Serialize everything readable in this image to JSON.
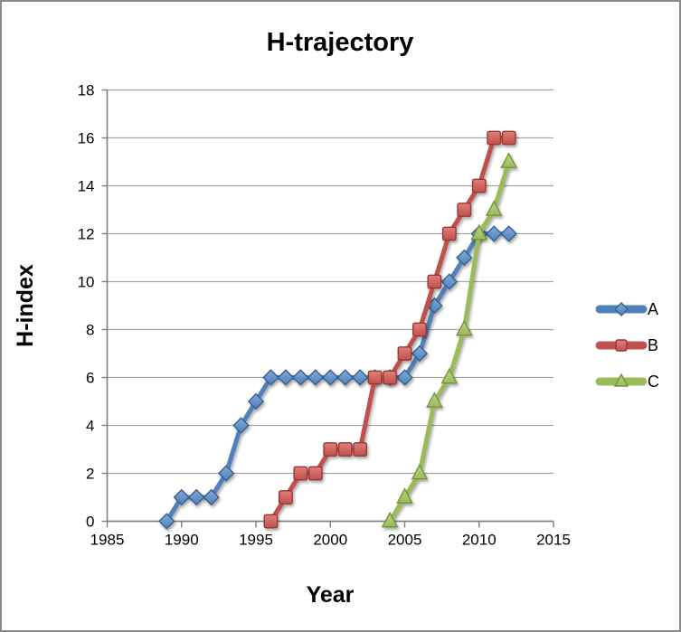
{
  "frame": {
    "background": "#ffffff",
    "border_color": "#8a8a8a"
  },
  "chart_data": {
    "type": "line",
    "title": "H-trajectory",
    "xlabel": "Year",
    "ylabel": "H-index",
    "xlim": [
      1985,
      2015
    ],
    "ylim": [
      0,
      18
    ],
    "x_ticks": [
      1985,
      1990,
      1995,
      2000,
      2005,
      2010,
      2015
    ],
    "y_ticks": [
      0,
      2,
      4,
      6,
      8,
      10,
      12,
      14,
      16,
      18
    ],
    "grid": "horizontal",
    "gridline_color": "#a6a6a6",
    "axis_color": "#808080",
    "legend_position": "right",
    "series": [
      {
        "name": "A",
        "marker": "diamond",
        "color": "#4f81bd",
        "color_light": "#82aad4",
        "edge": "#36618f",
        "x": [
          1989,
          1990,
          1991,
          1992,
          1993,
          1994,
          1995,
          1996,
          1997,
          1998,
          1999,
          2000,
          2001,
          2002,
          2003,
          2004,
          2005,
          2006,
          2007,
          2008,
          2009,
          2010,
          2011,
          2012
        ],
        "y": [
          0,
          1,
          1,
          1,
          2,
          4,
          5,
          6,
          6,
          6,
          6,
          6,
          6,
          6,
          6,
          6,
          6,
          7,
          9,
          10,
          11,
          12,
          12,
          12
        ]
      },
      {
        "name": "B",
        "marker": "square",
        "color": "#c0504d",
        "color_light": "#e07f7a",
        "edge": "#943734",
        "x": [
          1996,
          1997,
          1998,
          1999,
          2000,
          2001,
          2002,
          2003,
          2004,
          2005,
          2006,
          2007,
          2008,
          2009,
          2010,
          2011,
          2012
        ],
        "y": [
          0,
          1,
          2,
          2,
          3,
          3,
          3,
          6,
          6,
          7,
          8,
          10,
          12,
          13,
          14,
          16,
          16
        ]
      },
      {
        "name": "C",
        "marker": "triangle",
        "color": "#9bbb59",
        "color_light": "#bcd489",
        "edge": "#77933c",
        "x": [
          2004,
          2005,
          2006,
          2007,
          2008,
          2009,
          2010,
          2011,
          2012
        ],
        "y": [
          0,
          1,
          2,
          5,
          6,
          8,
          12,
          13,
          15
        ]
      }
    ]
  }
}
